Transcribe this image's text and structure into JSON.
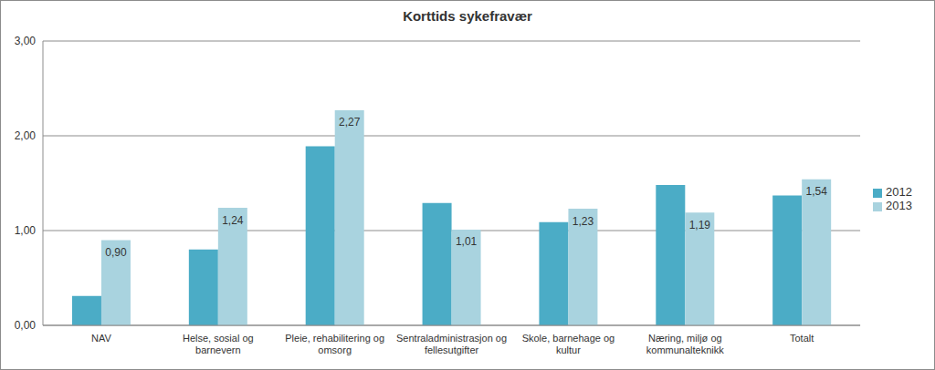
{
  "chart_data": {
    "type": "bar",
    "title": "Korttids sykefravær",
    "categories": [
      "NAV",
      "Helse, sosial og barnevern",
      "Pleie, rehabilitering og omsorg",
      "Sentraladministrasjon og fellesutgifter",
      "Skole, barnehage og kultur",
      "Næring, miljø og kommunalteknikk",
      "Totalt"
    ],
    "series": [
      {
        "name": "2012",
        "color": "#4bacc6",
        "values": [
          0.31,
          0.8,
          1.89,
          1.29,
          1.09,
          1.48,
          1.37
        ]
      },
      {
        "name": "2013",
        "color": "#a9d3df",
        "values": [
          0.9,
          1.24,
          2.27,
          1.01,
          1.23,
          1.19,
          1.54
        ],
        "data_labels": true,
        "value_labels": [
          "0,90",
          "1,24",
          "2,27",
          "1,01",
          "1,23",
          "1,19",
          "1,54"
        ]
      }
    ],
    "ylim": [
      0,
      3
    ],
    "yticks": [
      {
        "value": 0,
        "label": "0,00"
      },
      {
        "value": 1,
        "label": "1,00"
      },
      {
        "value": 2,
        "label": "2,00"
      },
      {
        "value": 3,
        "label": "3,00"
      }
    ],
    "grid": true,
    "legend": "right"
  }
}
